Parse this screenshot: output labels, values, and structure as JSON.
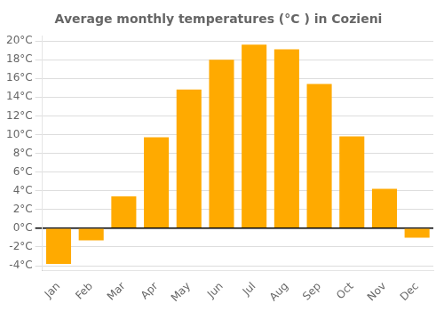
{
  "chart_data": {
    "type": "bar",
    "title": "Average monthly temperatures (°C ) in Cozieni",
    "categories": [
      "Jan",
      "Feb",
      "Mar",
      "Apr",
      "May",
      "Jun",
      "Jul",
      "Aug",
      "Sep",
      "Oct",
      "Nov",
      "Dec"
    ],
    "values": [
      -3.8,
      -1.3,
      3.4,
      9.7,
      14.8,
      18.0,
      19.6,
      19.1,
      15.4,
      9.8,
      4.2,
      -1.0
    ],
    "color": "#FFAA00",
    "ylim": [
      -4.5,
      20.5
    ],
    "yticks": [
      {
        "value": -4,
        "label": "-4°C"
      },
      {
        "value": -2,
        "label": "-2°C"
      },
      {
        "value": 0,
        "label": "0°C"
      },
      {
        "value": 2,
        "label": "2°C"
      },
      {
        "value": 4,
        "label": "4°C"
      },
      {
        "value": 6,
        "label": "6°C"
      },
      {
        "value": 8,
        "label": "8°C"
      },
      {
        "value": 10,
        "label": "10°C"
      },
      {
        "value": 12,
        "label": "12°C"
      },
      {
        "value": 14,
        "label": "14°C"
      },
      {
        "value": 16,
        "label": "16°C"
      },
      {
        "value": 18,
        "label": "18°C"
      },
      {
        "value": 20,
        "label": "20°C"
      }
    ],
    "grid": true
  }
}
